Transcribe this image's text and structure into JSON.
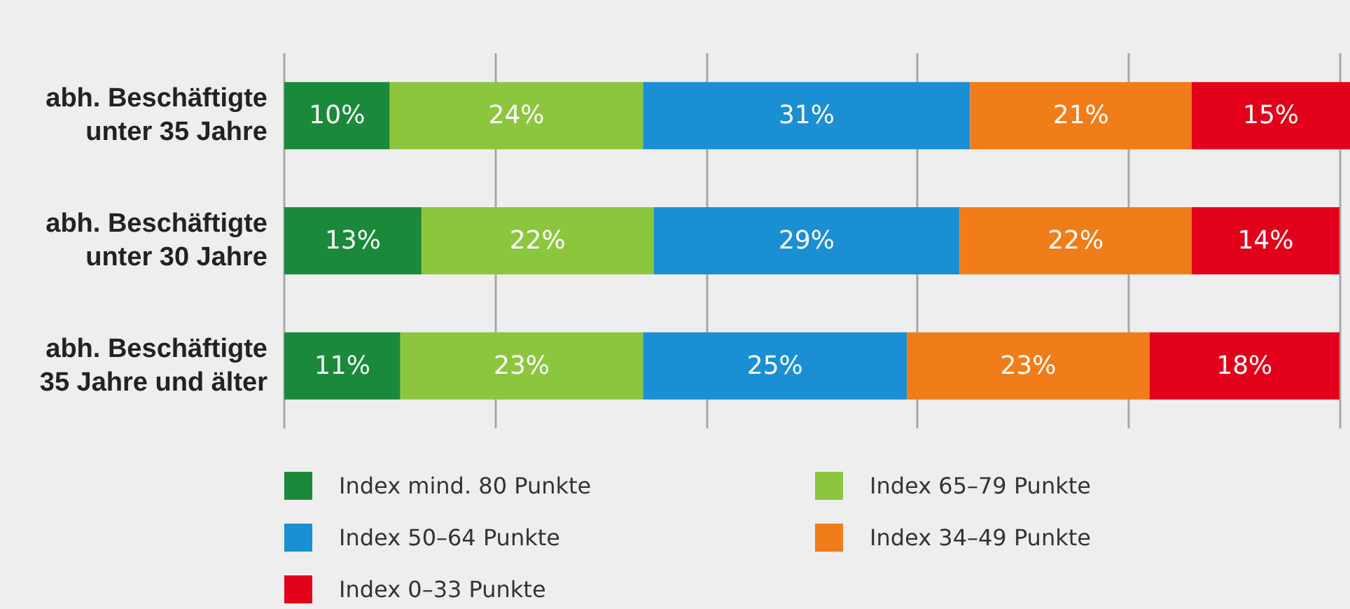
{
  "chart_data": {
    "type": "bar",
    "orientation": "horizontal",
    "stacked": true,
    "categories": [
      "abh. Beschäftigte\nunter 35 Jahre",
      "abh. Beschäftigte\nunter 30 Jahre",
      "abh. Beschäftigte\n35 Jahre und älter"
    ],
    "series": [
      {
        "name": "Index mind. 80 Punkte",
        "color": "#1a8a3a",
        "values": [
          10,
          13,
          11
        ],
        "value_labels": [
          "10%",
          "13%",
          "11%"
        ]
      },
      {
        "name": "Index 65–79 Punkte",
        "color": "#8cc63f",
        "values": [
          24,
          22,
          23
        ],
        "value_labels": [
          "24%",
          "22%",
          "23%"
        ]
      },
      {
        "name": "Index 50–64 Punkte",
        "color": "#1a8fd4",
        "values": [
          31,
          29,
          25
        ],
        "value_labels": [
          "31%",
          "29%",
          "25%"
        ]
      },
      {
        "name": "Index 34–49 Punkte",
        "color": "#f07d1a",
        "values": [
          21,
          22,
          23
        ],
        "value_labels": [
          "21%",
          "22%",
          "23%"
        ]
      },
      {
        "name": "Index 0–33 Punkte",
        "color": "#e2001a",
        "values": [
          15,
          14,
          18
        ],
        "value_labels": [
          "15%",
          "14%",
          "18%"
        ]
      }
    ],
    "xlim": [
      0,
      101
    ],
    "xticks": [
      {
        "value": 0,
        "label": null
      },
      {
        "value": 20,
        "label": null
      },
      {
        "value": 40,
        "label": null
      },
      {
        "value": 60,
        "label": null
      },
      {
        "value": 80,
        "label": null
      },
      {
        "value": 100,
        "label": null
      }
    ],
    "tick_labels": "y",
    "grid": "x",
    "legend": "bottom"
  }
}
